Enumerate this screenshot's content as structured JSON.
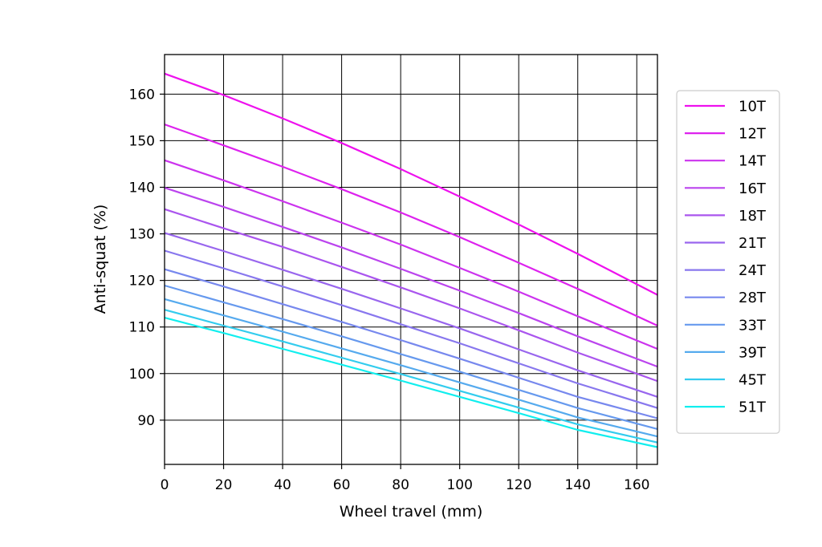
{
  "chart_data": {
    "type": "line",
    "title": "",
    "xlabel": "Wheel travel (mm)",
    "ylabel": "Anti-squat (%)",
    "xlim": [
      0,
      167
    ],
    "ylim": [
      80.5,
      168.5
    ],
    "xticks": [
      0,
      20,
      40,
      60,
      80,
      100,
      120,
      140,
      160
    ],
    "yticks": [
      90,
      100,
      110,
      120,
      130,
      140,
      150,
      160
    ],
    "grid": true,
    "legend_position": "right",
    "x": [
      0,
      20,
      40,
      60,
      80,
      100,
      120,
      140,
      167
    ],
    "series": [
      {
        "name": "10T",
        "color": "#ee11ee",
        "values": [
          164.4,
          159.8,
          154.8,
          149.5,
          143.9,
          138.0,
          132.0,
          125.7,
          116.9
        ]
      },
      {
        "name": "12T",
        "color": "#dd22ee",
        "values": [
          153.5,
          149.0,
          144.4,
          139.6,
          134.6,
          129.3,
          123.8,
          118.2,
          110.3
        ]
      },
      {
        "name": "14T",
        "color": "#cc33ee",
        "values": [
          145.8,
          141.5,
          137.0,
          132.4,
          127.7,
          122.7,
          117.6,
          112.3,
          105.3
        ]
      },
      {
        "name": "16T",
        "color": "#bb44ee",
        "values": [
          139.9,
          135.8,
          131.5,
          127.1,
          122.5,
          117.8,
          113.0,
          108.0,
          101.5
        ]
      },
      {
        "name": "18T",
        "color": "#aa55ee",
        "values": [
          135.3,
          131.2,
          127.2,
          122.9,
          118.5,
          114.0,
          109.3,
          104.5,
          98.4
        ]
      },
      {
        "name": "21T",
        "color": "#9966ee",
        "values": [
          130.2,
          126.3,
          122.3,
          118.2,
          114.0,
          109.7,
          105.2,
          100.7,
          95.0
        ]
      },
      {
        "name": "24T",
        "color": "#8877ee",
        "values": [
          126.4,
          122.6,
          118.7,
          114.7,
          110.6,
          106.5,
          102.2,
          97.9,
          92.6
        ]
      },
      {
        "name": "28T",
        "color": "#7788ee",
        "values": [
          122.4,
          118.7,
          114.9,
          111.1,
          107.2,
          103.2,
          99.1,
          95.0,
          90.4
        ]
      },
      {
        "name": "33T",
        "color": "#6699ee",
        "values": [
          118.9,
          115.3,
          111.7,
          108.0,
          104.2,
          100.4,
          96.5,
          92.6,
          88.1
        ]
      },
      {
        "name": "39T",
        "color": "#55aaee",
        "values": [
          116.0,
          112.5,
          109.0,
          105.4,
          101.8,
          98.1,
          94.4,
          90.6,
          86.5
        ]
      },
      {
        "name": "45T",
        "color": "#33ccee",
        "values": [
          113.7,
          110.3,
          106.9,
          103.4,
          99.9,
          96.3,
          92.7,
          89.1,
          85.2
        ]
      },
      {
        "name": "51T",
        "color": "#11eeee",
        "values": [
          112.0,
          108.7,
          105.3,
          101.9,
          98.5,
          95.0,
          91.5,
          87.9,
          84.2
        ]
      }
    ]
  }
}
